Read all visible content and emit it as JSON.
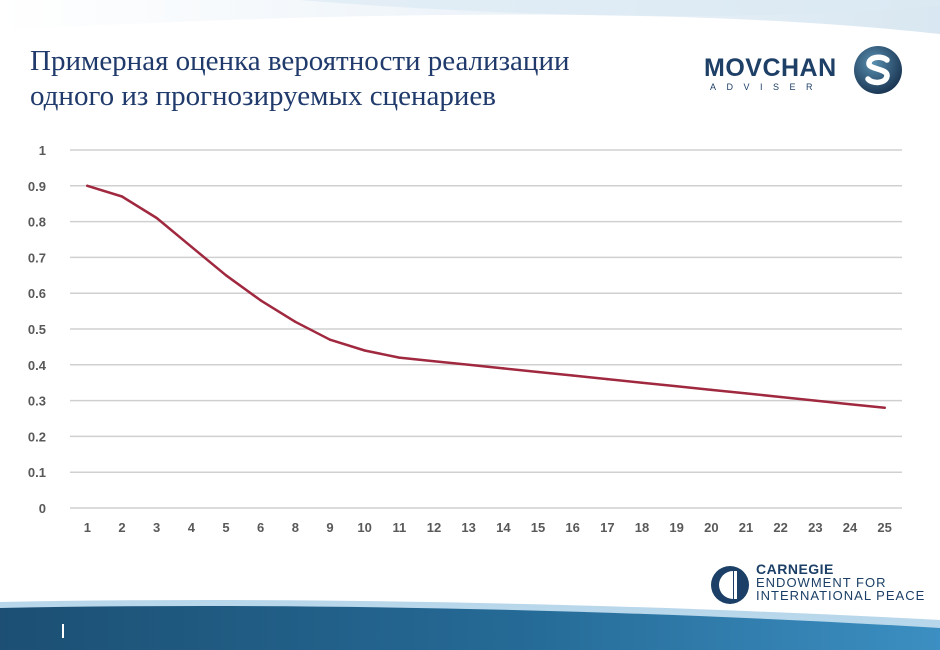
{
  "slide": {
    "title_line1": "Примерная оценка вероятности реализации",
    "title_line2": "одного из прогнозируемых сценариев"
  },
  "logos": {
    "movchan_word": "MOVCHAN",
    "movchan_sub": "ADVISER",
    "carnegie_line1": "CARNEGIE",
    "carnegie_line2": "ENDOWMENT FOR",
    "carnegie_line3": "INTERNATIONAL PEACE"
  },
  "colors": {
    "line": "#a0283f",
    "grid": "#d0d0d0",
    "tick_text": "#595959",
    "title": "#1f3a6b",
    "band_dark": "#1c4f73",
    "band_light": "#3c8fc2"
  },
  "chart_data": {
    "type": "line",
    "title": "",
    "xlabel": "",
    "ylabel": "",
    "categories": [
      "1",
      "2",
      "3",
      "4",
      "5",
      "6",
      "8",
      "9",
      "10",
      "11",
      "12",
      "13",
      "14",
      "15",
      "16",
      "17",
      "18",
      "19",
      "20",
      "21",
      "22",
      "23",
      "24",
      "25"
    ],
    "series": [
      {
        "values": [
          0.9,
          0.87,
          0.81,
          0.73,
          0.65,
          0.58,
          0.52,
          0.47,
          0.44,
          0.42,
          0.41,
          0.4,
          0.39,
          0.38,
          0.37,
          0.36,
          0.35,
          0.34,
          0.33,
          0.32,
          0.31,
          0.3,
          0.29,
          0.28
        ]
      }
    ],
    "ylim": [
      0,
      1
    ],
    "yticks": [
      "0",
      "0.1",
      "0.2",
      "0.3",
      "0.4",
      "0.5",
      "0.6",
      "0.7",
      "0.8",
      "0.9",
      "1"
    ],
    "grid": true,
    "legend": "none"
  }
}
